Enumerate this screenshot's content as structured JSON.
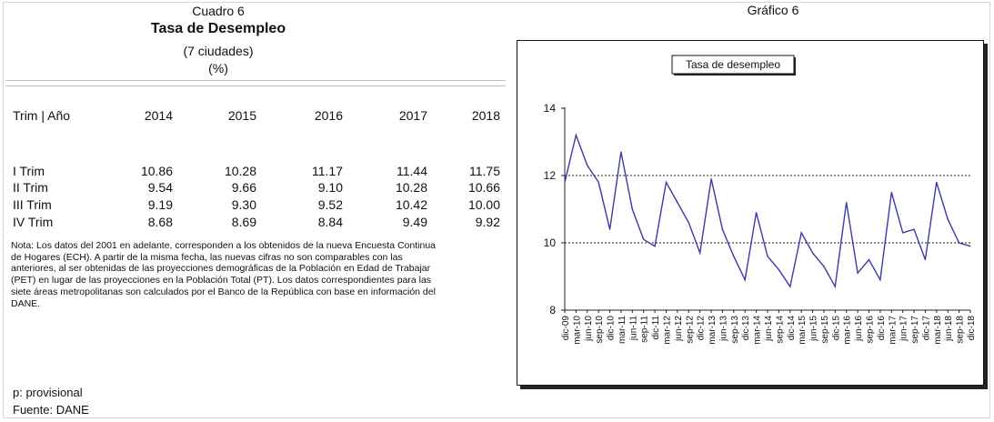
{
  "cuadro": {
    "title": "Cuadro 6",
    "heading": "Tasa de Desempleo",
    "subtitle": "(7 ciudades)",
    "unit": "(%)"
  },
  "table": {
    "header_label": "Trim | Año",
    "years": [
      "2014",
      "2015",
      "2016",
      "2017",
      "2018"
    ],
    "rows": [
      {
        "label": "I Trim",
        "values": [
          "10.86",
          "10.28",
          "11.17",
          "11.44",
          "11.75"
        ]
      },
      {
        "label": "II Trim",
        "values": [
          "9.54",
          "9.66",
          "9.10",
          "10.28",
          "10.66"
        ]
      },
      {
        "label": "III Trim",
        "values": [
          "9.19",
          "9.30",
          "9.52",
          "10.42",
          "10.00"
        ]
      },
      {
        "label": "IV Trim",
        "values": [
          "8.68",
          "8.69",
          "8.84",
          "9.49",
          "9.92"
        ]
      }
    ]
  },
  "note": "Nota: Los datos del 2001 en adelante, corresponden a los obtenidos de la nueva Encuesta Continua de Hogares (ECH).  A partir de la misma  fecha, las nuevas cifras no son comparables con las anteriores, al ser obtenidas de las proyecciones demográficas de la Población  en Edad de Trabajar (PET)  en lugar de las proyecciones en la Población Total (PT).  Los datos correspondientes para las siete áreas metropolitanas son calculados por el Banco de la  República con base en información del DANE.",
  "footnote": "p: provisional",
  "source": "Fuente: DANE",
  "grafico_title": "Gráfico 6",
  "chart_data": {
    "type": "line",
    "title": "Tasa de desempleo",
    "ylim": [
      8,
      14
    ],
    "yticks": [
      8,
      10,
      12,
      14
    ],
    "ref_lines": [
      10,
      12
    ],
    "x": [
      "dic-09",
      "mar-10",
      "jun-10",
      "sep-10",
      "dic-10",
      "mar-11",
      "jun-11",
      "sep-11",
      "dic-11",
      "mar-12",
      "jun-12",
      "sep-12",
      "dic-12",
      "mar-13",
      "jun-13",
      "sep-13",
      "dic-13",
      "mar-14",
      "jun-14",
      "sep-14",
      "dic-14",
      "mar-15",
      "jun-15",
      "sep-15",
      "dic-15",
      "mar-16",
      "jun-16",
      "sep-16",
      "dic-16",
      "mar-17",
      "jun-17",
      "sep-17",
      "dic-17",
      "mar-18",
      "jun-18",
      "sep-18",
      "dic-18"
    ],
    "series": [
      {
        "values": [
          11.8,
          13.2,
          12.3,
          11.8,
          10.4,
          12.7,
          11.0,
          10.1,
          9.9,
          11.8,
          11.2,
          10.6,
          9.7,
          11.9,
          10.4,
          9.6,
          8.9,
          10.9,
          9.6,
          9.2,
          8.7,
          10.3,
          9.7,
          9.3,
          8.7,
          11.2,
          9.1,
          9.5,
          8.9,
          11.5,
          10.3,
          10.4,
          9.5,
          11.8,
          10.7,
          10.0,
          9.9
        ]
      }
    ],
    "line_color": "#3a3aa8",
    "grid": false
  }
}
